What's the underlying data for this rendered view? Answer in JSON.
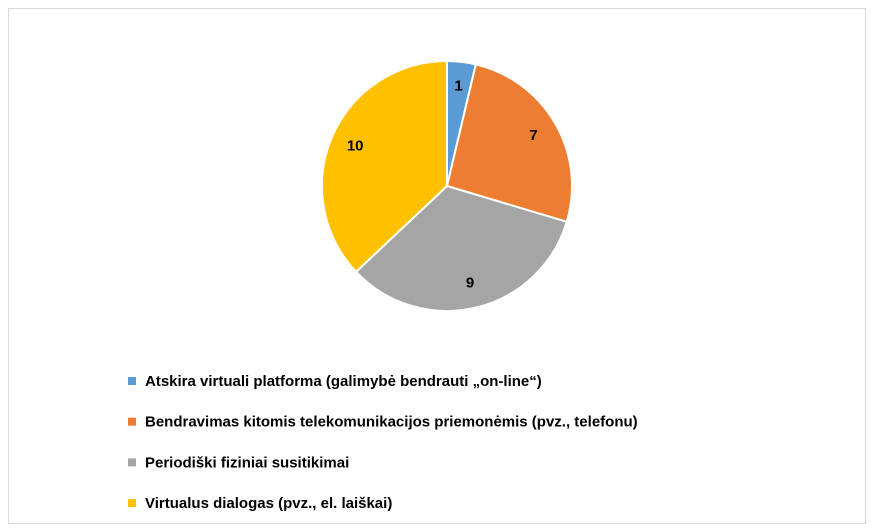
{
  "chart_data": {
    "type": "pie",
    "categories": [
      "Atskira virtuali platforma (galimybė bendrauti „on-line“)",
      "Bendravimas kitomis telekomunikacijos priemonėmis (pvz., telefonu)",
      "Periodiški fiziniai susitikimai",
      "Virtualus dialogas (pvz., el. laiškai)"
    ],
    "values": [
      1,
      7,
      9,
      10
    ],
    "colors": [
      "#5b9bd5",
      "#ed7d31",
      "#a5a5a5",
      "#ffc000"
    ],
    "legend": "bottom"
  }
}
